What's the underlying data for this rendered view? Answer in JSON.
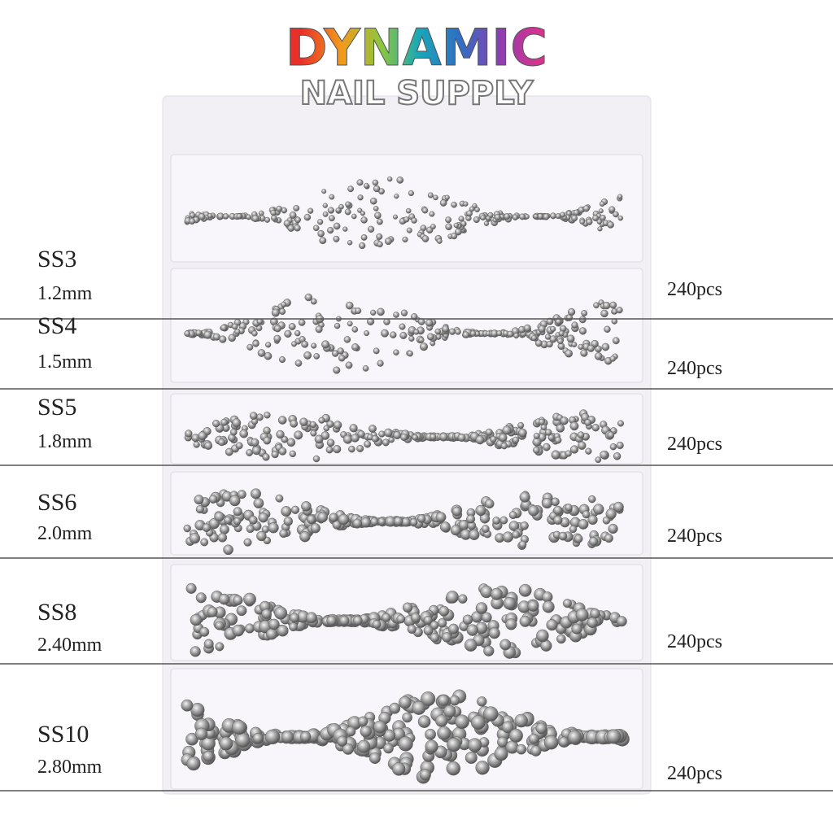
{
  "brand": {
    "title": "DYNAMIC",
    "subtitle": "NAIL SUPPLY"
  },
  "rows": [
    {
      "size": "SS3",
      "diameter": "1.2mm",
      "count": "240pcs"
    },
    {
      "size": "SS4",
      "diameter": "1.5mm",
      "count": "240pcs"
    },
    {
      "size": "SS5",
      "diameter": "1.8mm",
      "count": "240pcs"
    },
    {
      "size": "SS6",
      "diameter": "2.0mm",
      "count": "240pcs"
    },
    {
      "size": "SS8",
      "diameter": "2.40mm",
      "count": "240pcs"
    },
    {
      "size": "SS10",
      "diameter": "2.80mm",
      "count": "240pcs"
    }
  ]
}
